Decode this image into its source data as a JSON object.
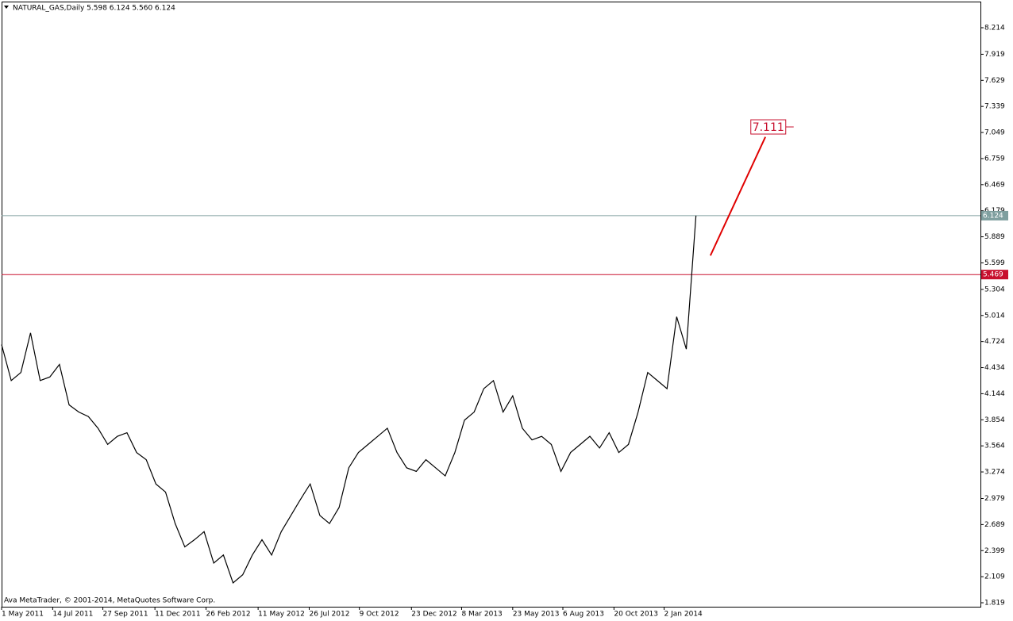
{
  "chart_data": {
    "type": "line",
    "title": "NATURAL_GAS,Daily  5.598 6.124 5.560 6.124",
    "footer": "Ava MetaTrader, © 2001-2014, MetaQuotes Software Corp.",
    "color": "#000000",
    "values": [
      4.69,
      4.29,
      4.38,
      4.82,
      4.29,
      4.33,
      4.47,
      4.02,
      3.94,
      3.89,
      3.76,
      3.58,
      3.67,
      3.71,
      3.49,
      3.41,
      3.14,
      3.05,
      2.7,
      2.44,
      2.52,
      2.61,
      2.26,
      2.35,
      2.04,
      2.13,
      2.35,
      2.52,
      2.35,
      2.61,
      2.79,
      2.97,
      3.14,
      2.79,
      2.7,
      2.88,
      3.32,
      3.49,
      3.58,
      3.67,
      3.76,
      3.49,
      3.32,
      3.28,
      3.41,
      3.32,
      3.23,
      3.49,
      3.85,
      3.94,
      4.2,
      4.29,
      3.94,
      4.12,
      3.76,
      3.63,
      3.67,
      3.58,
      3.28,
      3.49,
      3.58,
      3.67,
      3.54,
      3.71,
      3.49,
      3.58,
      3.94,
      4.38,
      4.29,
      4.2,
      5.0,
      4.64,
      6.124
    ],
    "xlim": [
      0,
      101.5
    ],
    "xticks": [
      {
        "value": 0,
        "label": "1 May 2011"
      },
      {
        "value": 5.3,
        "label": "14 Jul 2011"
      },
      {
        "value": 10.5,
        "label": "27 Sep 2011"
      },
      {
        "value": 15.9,
        "label": "11 Dec 2011"
      },
      {
        "value": 21.2,
        "label": "26 Feb 2012"
      },
      {
        "value": 26.6,
        "label": "11 May 2012"
      },
      {
        "value": 31.9,
        "label": "26 Jul 2012"
      },
      {
        "value": 37.1,
        "label": "9 Oct 2012"
      },
      {
        "value": 42.5,
        "label": "23 Dec 2012"
      },
      {
        "value": 47.7,
        "label": "8 Mar 2013"
      },
      {
        "value": 53.0,
        "label": "23 May 2013"
      },
      {
        "value": 58.2,
        "label": "6 Aug 2013"
      },
      {
        "value": 63.5,
        "label": "20 Oct 2013"
      },
      {
        "value": 68.7,
        "label": "2 Jan 2014"
      }
    ],
    "ylim": [
      1.775,
      8.496
    ],
    "yticks": [
      8.214,
      7.919,
      7.629,
      7.339,
      7.049,
      6.759,
      6.469,
      6.179,
      5.889,
      5.599,
      5.304,
      5.014,
      4.724,
      4.434,
      4.144,
      3.854,
      3.564,
      3.274,
      2.979,
      2.689,
      2.399,
      2.109,
      1.819
    ],
    "hlines": [
      {
        "value": 6.124,
        "color": "#7f9f9f"
      },
      {
        "value": 5.469,
        "color": "#c8102e"
      }
    ],
    "annotation": {
      "text": "7.111",
      "x": 79.5,
      "y": 7.111,
      "color": "#c8102e"
    },
    "arrow": {
      "x": [
        73.5,
        79.2
      ],
      "y": [
        5.68,
        7.0
      ],
      "color": "#e00000"
    }
  }
}
